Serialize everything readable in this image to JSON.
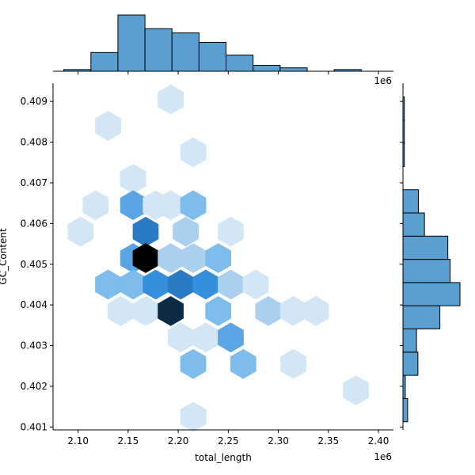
{
  "chart_data": {
    "type": "hexbin",
    "xlabel": "total_length",
    "ylabel": "GC_Content",
    "x_offset_label": "1e6",
    "top_offset_label": "1e6",
    "xlim": [
      2.075,
      2.415
    ],
    "ylim": [
      0.40093,
      0.40945
    ],
    "x_ticks": [
      2.1,
      2.15,
      2.2,
      2.25,
      2.3,
      2.35,
      2.4
    ],
    "x_tick_labels": [
      "2.10",
      "2.15",
      "2.20",
      "2.25",
      "2.30",
      "2.35",
      "2.40"
    ],
    "y_ticks": [
      0.401,
      0.402,
      0.403,
      0.404,
      0.405,
      0.406,
      0.407,
      0.408,
      0.409
    ],
    "y_tick_labels": [
      "0.401",
      "0.402",
      "0.403",
      "0.404",
      "0.405",
      "0.406",
      "0.407",
      "0.408",
      "0.409"
    ],
    "hex_bins": [
      {
        "x": 2.1925,
        "y": 0.40905,
        "level": 1
      },
      {
        "x": 2.13,
        "y": 0.4084,
        "level": 1
      },
      {
        "x": 2.215,
        "y": 0.40775,
        "level": 1
      },
      {
        "x": 2.155,
        "y": 0.4071,
        "level": 1
      },
      {
        "x": 2.1175,
        "y": 0.40645,
        "level": 1
      },
      {
        "x": 2.155,
        "y": 0.40645,
        "level": 4
      },
      {
        "x": 2.1775,
        "y": 0.40645,
        "level": 1
      },
      {
        "x": 2.1925,
        "y": 0.40645,
        "level": 1
      },
      {
        "x": 2.215,
        "y": 0.40645,
        "level": 3
      },
      {
        "x": 2.1025,
        "y": 0.4058,
        "level": 1
      },
      {
        "x": 2.1675,
        "y": 0.4058,
        "level": 6
      },
      {
        "x": 2.2075,
        "y": 0.4058,
        "level": 2
      },
      {
        "x": 2.2525,
        "y": 0.4058,
        "level": 1
      },
      {
        "x": 2.155,
        "y": 0.40515,
        "level": 4
      },
      {
        "x": 2.1675,
        "y": 0.40515,
        "level": 9
      },
      {
        "x": 2.1925,
        "y": 0.40515,
        "level": 2
      },
      {
        "x": 2.215,
        "y": 0.40515,
        "level": 2
      },
      {
        "x": 2.24,
        "y": 0.40515,
        "level": 3
      },
      {
        "x": 2.13,
        "y": 0.4045,
        "level": 3
      },
      {
        "x": 2.155,
        "y": 0.4045,
        "level": 3
      },
      {
        "x": 2.1775,
        "y": 0.4045,
        "level": 5
      },
      {
        "x": 2.2025,
        "y": 0.4045,
        "level": 6
      },
      {
        "x": 2.2275,
        "y": 0.4045,
        "level": 5
      },
      {
        "x": 2.2525,
        "y": 0.4045,
        "level": 2
      },
      {
        "x": 2.2775,
        "y": 0.4045,
        "level": 1
      },
      {
        "x": 2.1425,
        "y": 0.40385,
        "level": 1
      },
      {
        "x": 2.1675,
        "y": 0.40385,
        "level": 1
      },
      {
        "x": 2.1925,
        "y": 0.40385,
        "level": 8
      },
      {
        "x": 2.24,
        "y": 0.40385,
        "level": 3
      },
      {
        "x": 2.29,
        "y": 0.40385,
        "level": 2
      },
      {
        "x": 2.315,
        "y": 0.40385,
        "level": 1
      },
      {
        "x": 2.3375,
        "y": 0.40385,
        "level": 1
      },
      {
        "x": 2.2025,
        "y": 0.4032,
        "level": 1
      },
      {
        "x": 2.2275,
        "y": 0.4032,
        "level": 1
      },
      {
        "x": 2.2525,
        "y": 0.4032,
        "level": 4
      },
      {
        "x": 2.215,
        "y": 0.40255,
        "level": 3
      },
      {
        "x": 2.265,
        "y": 0.40255,
        "level": 3
      },
      {
        "x": 2.315,
        "y": 0.40255,
        "level": 1
      },
      {
        "x": 2.3775,
        "y": 0.4019,
        "level": 1
      },
      {
        "x": 2.215,
        "y": 0.40125,
        "level": 1
      }
    ],
    "marginal_x": {
      "type": "bar",
      "bin_edges": [
        2.0858,
        2.1128,
        2.1398,
        2.1668,
        2.1938,
        2.2208,
        2.2478,
        2.2748,
        2.3018,
        2.3288,
        2.3558,
        2.3828,
        2.4098
      ],
      "counts": [
        0.2,
        2.2,
        6.6,
        5.0,
        4.5,
        3.4,
        1.9,
        0.7,
        0.4,
        0,
        0.2,
        0
      ]
    },
    "marginal_y": {
      "type": "bar",
      "bin_edges": [
        0.40113,
        0.4017,
        0.40227,
        0.40284,
        0.40341,
        0.40398,
        0.40455,
        0.40512,
        0.40569,
        0.40626,
        0.40683,
        0.4074,
        0.40797,
        0.40854,
        0.40911
      ],
      "counts": [
        1.0,
        0.5,
        3.2,
        2.9,
        7.9,
        12.2,
        10.1,
        9.6,
        4.6,
        3.3,
        0,
        0.3,
        0.3,
        0.3
      ]
    },
    "colors": {
      "bar_fill": "#5a9fcf",
      "bar_stroke": "#000000",
      "levels": [
        "#ffffff",
        "#d2e6f6",
        "#abd0ef",
        "#7dbceb",
        "#5aa6e4",
        "#3490dc",
        "#2b7bc4",
        "#1e67ad",
        "#0b2a43",
        "#000000"
      ]
    }
  }
}
